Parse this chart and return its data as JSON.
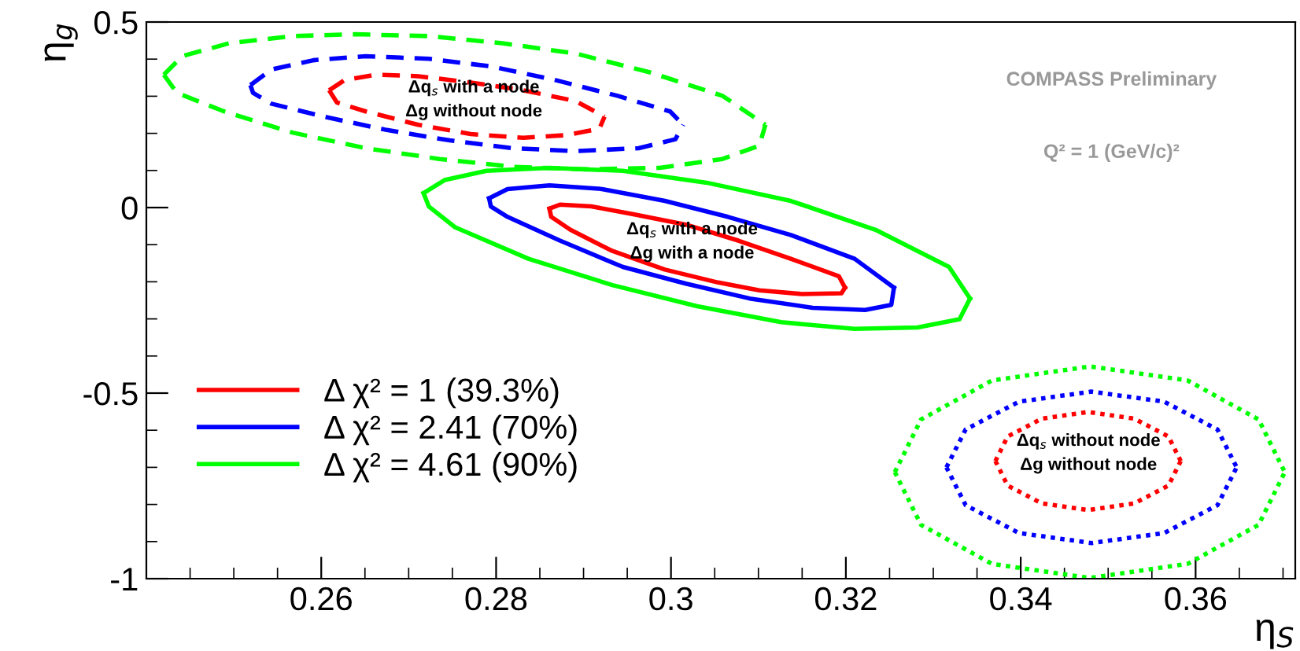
{
  "chart_data": {
    "type": "line",
    "xlabel": "η$_{S}$",
    "ylabel": "η$_{g}$",
    "xlim": [
      0.24,
      0.3714
    ],
    "ylim": [
      -1,
      0.5
    ],
    "xticks": [
      0.26,
      0.28,
      0.3,
      0.32,
      0.34,
      0.36
    ],
    "yticks": [
      -1,
      -0.5,
      0,
      0.5
    ],
    "grid": false,
    "legend": "bottom left",
    "marker": "none",
    "series": [
      {
        "name": "Δ χ² = 1 (39.3%)",
        "color": "#ff0000",
        "line_style": "solid",
        "x": [
          0.2861,
          0.2873,
          0.2909,
          0.2957,
          0.3017,
          0.3077,
          0.3137,
          0.3192,
          0.3199
        ],
        "values": [
          -0.003,
          0.008,
          0.003,
          -0.018,
          -0.046,
          -0.089,
          -0.138,
          -0.185,
          -0.216
        ]
      },
      {
        "name": "Δ χ² = 2.41 (70%)",
        "color": "#0000ff",
        "line_style": "solid",
        "x": [
          0.2792,
          0.2813,
          0.2861,
          0.2921,
          0.2993,
          0.3065,
          0.3137,
          0.321,
          0.3255
        ],
        "values": [
          0.025,
          0.05,
          0.06,
          0.05,
          0.018,
          -0.025,
          -0.074,
          -0.138,
          -0.216
        ]
      },
      {
        "name": "Δ χ² = 4.61 (90%)",
        "color": "#00ff00",
        "line_style": "solid",
        "x": [
          0.2717,
          0.2741,
          0.2789,
          0.2861,
          0.2945,
          0.3041,
          0.3137,
          0.3234,
          0.3318,
          0.3342
        ],
        "values": [
          0.039,
          0.074,
          0.099,
          0.107,
          0.099,
          0.067,
          0.018,
          -0.06,
          -0.16,
          -0.245
        ]
      },
      {
        "color": "#ff0000",
        "line_style": "solid",
        "x": [
          0.2861,
          0.2863,
          0.2885,
          0.2933,
          0.2993,
          0.3054,
          0.3101,
          0.315,
          0.3195,
          0.3199
        ],
        "values": [
          -0.003,
          -0.025,
          -0.06,
          -0.117,
          -0.167,
          -0.202,
          -0.223,
          -0.233,
          -0.231,
          -0.216
        ]
      },
      {
        "color": "#0000ff",
        "line_style": "solid",
        "x": [
          0.2792,
          0.2794,
          0.2813,
          0.2873,
          0.2945,
          0.3017,
          0.309,
          0.3162,
          0.3222,
          0.3252,
          0.3255
        ],
        "values": [
          0.025,
          0.003,
          -0.025,
          -0.089,
          -0.16,
          -0.205,
          -0.245,
          -0.27,
          -0.276,
          -0.262,
          -0.216
        ]
      },
      {
        "color": "#00ff00",
        "line_style": "solid",
        "x": [
          0.2717,
          0.2723,
          0.2753,
          0.2837,
          0.2933,
          0.303,
          0.3126,
          0.321,
          0.3282,
          0.333,
          0.3342
        ],
        "values": [
          0.039,
          0.003,
          -0.053,
          -0.138,
          -0.209,
          -0.266,
          -0.309,
          -0.327,
          -0.323,
          -0.301,
          -0.245
        ]
      },
      {
        "color": "#ff0000",
        "line_style": "dashed",
        "x": [
          0.2609,
          0.2627,
          0.2663,
          0.2711,
          0.2771,
          0.2831,
          0.2891,
          0.2924
        ],
        "values": [
          0.316,
          0.344,
          0.358,
          0.354,
          0.337,
          0.316,
          0.287,
          0.245
        ]
      },
      {
        "color": "#ff0000",
        "line_style": "dashed",
        "x": [
          0.2609,
          0.2618,
          0.2651,
          0.2711,
          0.2771,
          0.2831,
          0.2879,
          0.2918,
          0.2924
        ],
        "values": [
          0.316,
          0.283,
          0.259,
          0.223,
          0.198,
          0.188,
          0.195,
          0.212,
          0.245
        ]
      },
      {
        "color": "#0000ff",
        "line_style": "dashed",
        "x": [
          0.2519,
          0.2543,
          0.2591,
          0.2651,
          0.2723,
          0.2795,
          0.2867,
          0.2939,
          0.2999,
          0.3014
        ],
        "values": [
          0.33,
          0.372,
          0.397,
          0.408,
          0.401,
          0.38,
          0.344,
          0.301,
          0.259,
          0.223
        ]
      },
      {
        "color": "#0000ff",
        "line_style": "dashed",
        "x": [
          0.2519,
          0.2522,
          0.2543,
          0.2603,
          0.2675,
          0.2747,
          0.2819,
          0.2891,
          0.2963,
          0.3005,
          0.3014
        ],
        "values": [
          0.33,
          0.309,
          0.28,
          0.245,
          0.209,
          0.181,
          0.16,
          0.152,
          0.16,
          0.184,
          0.223
        ]
      },
      {
        "color": "#00ff00",
        "line_style": "dashed",
        "x": [
          0.242,
          0.2441,
          0.2495,
          0.2567,
          0.2639,
          0.2723,
          0.2807,
          0.2891,
          0.2975,
          0.3059,
          0.3108
        ],
        "values": [
          0.358,
          0.408,
          0.443,
          0.462,
          0.467,
          0.462,
          0.443,
          0.415,
          0.365,
          0.301,
          0.223
        ]
      },
      {
        "color": "#00ff00",
        "line_style": "dashed",
        "x": [
          0.242,
          0.2435,
          0.2489,
          0.2567,
          0.2651,
          0.2735,
          0.2819,
          0.2903,
          0.2987,
          0.3059,
          0.3101,
          0.3108
        ],
        "values": [
          0.358,
          0.309,
          0.259,
          0.202,
          0.16,
          0.131,
          0.11,
          0.103,
          0.107,
          0.131,
          0.167,
          0.223
        ]
      },
      {
        "color": "#ff0000",
        "line_style": "dotted",
        "x": [
          0.3371,
          0.3385,
          0.3424,
          0.3477,
          0.353,
          0.3569,
          0.3583
        ],
        "values": [
          -0.683,
          -0.617,
          -0.569,
          -0.551,
          -0.569,
          -0.617,
          -0.683
        ]
      },
      {
        "color": "#ff0000",
        "line_style": "dotted",
        "x": [
          0.3371,
          0.3385,
          0.3424,
          0.3477,
          0.353,
          0.3569,
          0.3583
        ],
        "values": [
          -0.683,
          -0.749,
          -0.797,
          -0.815,
          -0.797,
          -0.749,
          -0.683
        ]
      },
      {
        "color": "#0000ff",
        "line_style": "dotted",
        "x": [
          0.3315,
          0.3337,
          0.3398,
          0.3481,
          0.3564,
          0.3625,
          0.3647
        ],
        "values": [
          -0.7,
          -0.598,
          -0.523,
          -0.496,
          -0.523,
          -0.598,
          -0.7
        ]
      },
      {
        "color": "#0000ff",
        "line_style": "dotted",
        "x": [
          0.3315,
          0.3337,
          0.3398,
          0.3481,
          0.3564,
          0.3625,
          0.3647
        ],
        "values": [
          -0.7,
          -0.802,
          -0.877,
          -0.904,
          -0.877,
          -0.802,
          -0.7
        ]
      },
      {
        "color": "#00ff00",
        "line_style": "dotted",
        "x": [
          0.3256,
          0.3286,
          0.3367,
          0.3479,
          0.3591,
          0.3672,
          0.3702
        ],
        "values": [
          -0.713,
          -0.571,
          -0.466,
          -0.428,
          -0.466,
          -0.571,
          -0.713
        ]
      },
      {
        "color": "#00ff00",
        "line_style": "dotted",
        "x": [
          0.3256,
          0.3286,
          0.3367,
          0.3479,
          0.3591,
          0.3672,
          0.3702
        ],
        "values": [
          -0.713,
          -0.855,
          -0.96,
          -0.998,
          -0.96,
          -0.855,
          -0.713
        ]
      }
    ],
    "annotations": [
      "Δq$_{s}$ with a node\nΔg without node",
      "Δq$_{s}$ with a node\nΔg with a node",
      "Δq$_{s}$ without node\nΔg without node",
      "COMPASS Preliminary",
      "Q² = 1 (GeV/c)²"
    ]
  }
}
